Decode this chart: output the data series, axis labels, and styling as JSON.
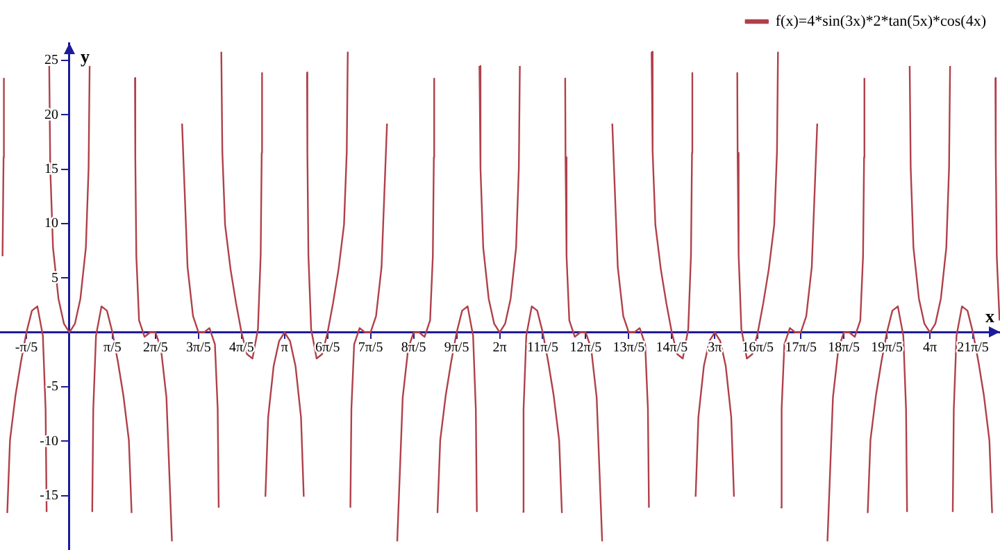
{
  "chart_data": {
    "type": "line",
    "xlabel": "x",
    "ylabel": "y",
    "xlim": [
      -1.014,
      13.59
    ],
    "ylim": [
      -20,
      26.6
    ],
    "xticks": [
      {
        "value": -0.6283,
        "label": "-π/5"
      },
      {
        "value": 0.6283,
        "label": "π/5"
      },
      {
        "value": 1.2566,
        "label": "2π/5"
      },
      {
        "value": 1.885,
        "label": "3π/5"
      },
      {
        "value": 2.5133,
        "label": "4π/5"
      },
      {
        "value": 3.1416,
        "label": "π"
      },
      {
        "value": 3.7699,
        "label": "6π/5"
      },
      {
        "value": 4.3982,
        "label": "7π/5"
      },
      {
        "value": 5.0265,
        "label": "8π/5"
      },
      {
        "value": 5.6549,
        "label": "9π/5"
      },
      {
        "value": 6.2832,
        "label": "2π"
      },
      {
        "value": 6.9115,
        "label": "11π/5"
      },
      {
        "value": 7.5398,
        "label": "12π/5"
      },
      {
        "value": 8.1681,
        "label": "13π/5"
      },
      {
        "value": 8.7965,
        "label": "14π/5"
      },
      {
        "value": 9.4248,
        "label": "3π"
      },
      {
        "value": 10.0531,
        "label": "16π/5"
      },
      {
        "value": 10.6814,
        "label": "17π/5"
      },
      {
        "value": 11.3097,
        "label": "18π/5"
      },
      {
        "value": 11.9381,
        "label": "19π/5"
      },
      {
        "value": 12.5664,
        "label": "4π"
      },
      {
        "value": 13.1947,
        "label": "21π/5"
      }
    ],
    "yticks": [
      -15,
      -10,
      -5,
      5,
      10,
      15,
      20,
      25
    ],
    "legend": "top right",
    "x": [
      -0.977,
      -0.962,
      -0.957,
      -0.942,
      -0.908,
      -0.868,
      -0.788,
      -0.708,
      -0.628,
      -0.548,
      -0.468,
      -0.388,
      -0.348,
      -0.333,
      -0.314,
      -0.295,
      -0.28,
      -0.24,
      -0.16,
      -0.08,
      0,
      0.08,
      0.16,
      0.24,
      0.28,
      0.295,
      0.314,
      0.333,
      0.348,
      0.388,
      0.468,
      0.548,
      0.628,
      0.708,
      0.788,
      0.868,
      0.908,
      0.942,
      0.957,
      0.962,
      0.977,
      1.017,
      1.097,
      1.177,
      1.257,
      1.337,
      1.417,
      1.497,
      1.571,
      1.645,
      1.725,
      1.805,
      1.885,
      1.965,
      2.045,
      2.125,
      2.165,
      2.18,
      2.199,
      2.218,
      2.233,
      2.273,
      2.353,
      2.433,
      2.513,
      2.593,
      2.673,
      2.753,
      2.793,
      2.808,
      2.813,
      2.827,
      2.862,
      2.902,
      2.982,
      3.062,
      3.142,
      3.222,
      3.302,
      3.382,
      3.422,
      3.456,
      3.47,
      3.475,
      3.49,
      3.53,
      3.61,
      3.69,
      3.77,
      3.85,
      3.93,
      4.01,
      4.05,
      4.065,
      4.084,
      4.103,
      4.118,
      4.158,
      4.238,
      4.318,
      4.398,
      4.478,
      4.558,
      4.638,
      4.712,
      4.787,
      4.867,
      4.947,
      5.027,
      5.107,
      5.187,
      5.267,
      5.307,
      5.322,
      5.327,
      5.341,
      5.375,
      5.415,
      5.495,
      5.575,
      5.655,
      5.735,
      5.815,
      5.895,
      5.935,
      5.95,
      5.969,
      5.988,
      6.003,
      6.043,
      6.123,
      6.203,
      6.283,
      6.363,
      6.443,
      6.523,
      6.563,
      6.578,
      6.597,
      6.617,
      6.632,
      6.672,
      6.752,
      6.832,
      6.912,
      6.992,
      7.072,
      7.152,
      7.192,
      7.226,
      7.24,
      7.245,
      7.26,
      7.3,
      7.38,
      7.46,
      7.54,
      7.62,
      7.7,
      7.78,
      7.854,
      7.928,
      8.008,
      8.088,
      8.168,
      8.248,
      8.328,
      8.408,
      8.448,
      8.463,
      8.482,
      8.502,
      8.517,
      8.557,
      8.637,
      8.717,
      8.797,
      8.877,
      8.957,
      9.037,
      9.077,
      9.092,
      9.097,
      9.111,
      9.145,
      9.185,
      9.265,
      9.345,
      9.425,
      9.505,
      9.585,
      9.665,
      9.705,
      9.739,
      9.753,
      9.758,
      9.773,
      9.813,
      9.893,
      9.973,
      10.053,
      10.133,
      10.213,
      10.293,
      10.333,
      10.348,
      10.367,
      10.386,
      10.401,
      10.441,
      10.521,
      10.601,
      10.681,
      10.761,
      10.841,
      10.921,
      10.996,
      11.07,
      11.15,
      11.23,
      11.31,
      11.39,
      11.47,
      11.55,
      11.59,
      11.605,
      11.61,
      11.624,
      11.658,
      11.698,
      11.778,
      11.858,
      11.938,
      12.018,
      12.098,
      12.178,
      12.218,
      12.233,
      12.252,
      12.271,
      12.286,
      12.326,
      12.406,
      12.486,
      12.566,
      12.646,
      12.726,
      12.806,
      12.846,
      12.861,
      12.881,
      12.9,
      12.915,
      12.955,
      13.035,
      13.115,
      13.195,
      13.275,
      13.355,
      13.435,
      13.475,
      13.509,
      13.523,
      13.528,
      13.543,
      13.583
    ],
    "series": [
      {
        "name": "f(x)=4*sin(3x)*2*tan(5x)*cos(4x)",
        "color": "#b0404a",
        "values": [
          7.0,
          16.1,
          23.4,
          null,
          -16.6,
          -9.9,
          -5.8,
          -2.7,
          0,
          2.0,
          2.4,
          -0.3,
          -7.1,
          -16.5,
          null,
          24.5,
          15.1,
          7.8,
          3.1,
          0.8,
          0,
          0.8,
          3.1,
          7.8,
          15.1,
          24.5,
          null,
          -16.5,
          -7.1,
          -0.3,
          2.4,
          2.0,
          0,
          -2.7,
          -5.8,
          -9.9,
          -16.6,
          null,
          23.4,
          16.1,
          7.0,
          1.1,
          -0.4,
          0,
          0,
          -1.5,
          -6.0,
          -19.2,
          null,
          19.2,
          6.0,
          1.5,
          0,
          0,
          0.4,
          -1.1,
          -7.0,
          -16.1,
          null,
          25.8,
          16.6,
          9.9,
          5.8,
          2.7,
          0,
          -2.0,
          -2.4,
          0.3,
          7.1,
          16.5,
          23.9,
          null,
          -15.1,
          -7.8,
          -3.1,
          -0.8,
          0,
          -0.8,
          -3.1,
          -7.8,
          -15.1,
          null,
          23.9,
          16.5,
          7.1,
          0.3,
          -2.4,
          -2.0,
          0,
          2.7,
          5.8,
          9.9,
          16.6,
          25.8,
          null,
          -16.1,
          -7.0,
          -1.1,
          0.4,
          0,
          0,
          1.5,
          6.0,
          19.2,
          null,
          -19.2,
          -6.0,
          -1.5,
          0,
          0,
          -0.4,
          1.1,
          7.0,
          16.1,
          23.4,
          null,
          -16.6,
          -9.9,
          -5.8,
          -2.7,
          0,
          2.0,
          2.4,
          -0.3,
          -7.1,
          -16.5,
          null,
          24.5,
          15.1,
          7.8,
          3.1,
          0.8,
          0,
          0.8,
          3.1,
          7.8,
          15.1,
          24.5,
          null,
          -16.5,
          -7.1,
          -0.3,
          2.4,
          2.0,
          0,
          -2.7,
          -5.8,
          -9.9,
          -16.6,
          null,
          23.4,
          16.1,
          7.0,
          1.1,
          -0.4,
          0,
          0,
          -1.5,
          -6.0,
          -19.2,
          null,
          19.2,
          6.0,
          1.5,
          0,
          0,
          0.4,
          -1.1,
          -7.0,
          -16.1,
          null,
          25.8,
          16.6,
          9.9,
          5.8,
          2.7,
          0,
          -2.0,
          -2.4,
          0.3,
          7.1,
          16.5,
          23.9,
          null,
          -15.1,
          -7.8,
          -3.1,
          -0.8,
          0,
          -0.8,
          -3.1,
          -7.8,
          -15.1,
          null,
          23.9,
          16.5,
          7.1,
          0.3,
          -2.4,
          -2.0,
          0,
          2.7,
          5.8,
          9.9,
          16.6,
          25.8,
          null,
          -16.1,
          -7.0,
          -1.1,
          0.4,
          0,
          0,
          1.5,
          6.0,
          19.2,
          null,
          -19.2,
          -6.0,
          -1.5,
          0,
          0,
          -0.4,
          1.1,
          7.0,
          16.1,
          23.4,
          null,
          -16.6,
          -9.9,
          -5.8,
          -2.7,
          0,
          2.0,
          2.4,
          -0.3,
          -7.1,
          -16.5,
          null,
          24.5,
          15.1,
          7.8,
          3.1,
          0.8,
          0,
          0.8,
          3.1,
          7.8,
          15.1,
          24.5,
          null,
          -16.5,
          -7.1,
          -0.3,
          2.4,
          2.0,
          0,
          -2.7,
          -5.8,
          -9.9,
          -16.6,
          null,
          23.4,
          16.1,
          7.0,
          1.1
        ]
      }
    ]
  }
}
